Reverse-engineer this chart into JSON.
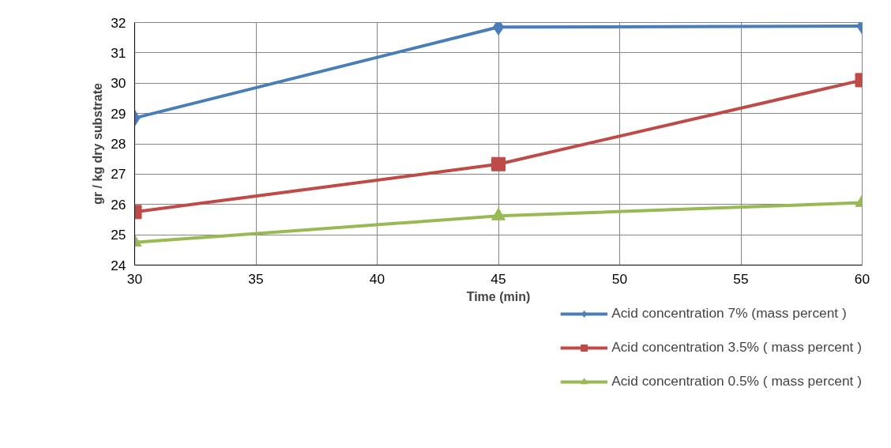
{
  "chart_data": {
    "type": "line",
    "xlabel": "Time (min)",
    "ylabel": "gr / kg dry substrate",
    "x": [
      30,
      45,
      60
    ],
    "series": [
      {
        "name": "Acid concentration 7% (mass percent )",
        "color": "#4a7ebb",
        "marker": "diamond",
        "values": [
          28.85,
          31.85,
          31.88
        ]
      },
      {
        "name": "Acid concentration 3.5% ( mass percent )",
        "color": "#be4b48",
        "marker": "square",
        "values": [
          25.75,
          27.33,
          30.1
        ]
      },
      {
        "name": "Acid concentration 0.5% ( mass percent )",
        "color": "#98b954",
        "marker": "triangle",
        "values": [
          24.75,
          25.62,
          26.06
        ]
      }
    ],
    "xlim": [
      30,
      60
    ],
    "xticks": [
      30,
      35,
      40,
      45,
      50,
      55,
      60
    ],
    "ylim": [
      24,
      32
    ],
    "yticks": [
      24,
      25,
      26,
      27,
      28,
      29,
      30,
      31,
      32
    ],
    "grid": true,
    "legend": "bottom right",
    "line_style": "solid"
  }
}
